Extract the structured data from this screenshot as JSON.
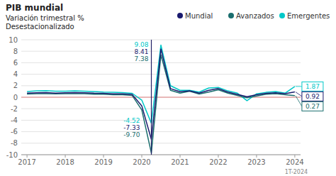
{
  "chart_data": {
    "type": "line",
    "title": "PIB mundial",
    "subtitle": [
      "Variación trimestral %",
      "Desestacionalizado"
    ],
    "x": [
      2017.0,
      2017.25,
      2017.5,
      2017.75,
      2018.0,
      2018.25,
      2018.5,
      2018.75,
      2019.0,
      2019.25,
      2019.5,
      2019.75,
      2020.0,
      2020.25,
      2020.5,
      2020.75,
      2021.0,
      2021.25,
      2021.5,
      2021.75,
      2022.0,
      2022.25,
      2022.5,
      2022.75,
      2023.0,
      2023.25,
      2023.5,
      2023.75,
      2024.0
    ],
    "series": [
      {
        "name": "Mundial",
        "color": "#1a1a6e",
        "values": [
          0.7,
          0.78,
          0.8,
          0.72,
          0.78,
          0.8,
          0.78,
          0.7,
          0.68,
          0.6,
          0.6,
          0.48,
          -1.5,
          -7.33,
          8.41,
          1.5,
          0.95,
          1.1,
          0.7,
          1.2,
          1.5,
          0.9,
          0.5,
          0.1,
          0.42,
          0.68,
          0.78,
          0.62,
          0.92
        ]
      },
      {
        "name": "Avanzados",
        "color": "#1a6e6e",
        "values": [
          0.55,
          0.62,
          0.63,
          0.58,
          0.62,
          0.63,
          0.62,
          0.54,
          0.52,
          0.42,
          0.42,
          0.3,
          -2.2,
          -9.7,
          7.38,
          1.2,
          0.7,
          1.05,
          0.55,
          0.9,
          1.3,
          0.72,
          0.3,
          -0.1,
          0.22,
          0.52,
          0.62,
          0.42,
          0.27
        ]
      },
      {
        "name": "Emergentes",
        "color": "#00c8c8",
        "values": [
          1.0,
          1.1,
          1.15,
          1.05,
          1.05,
          1.1,
          1.05,
          1.0,
          0.9,
          0.85,
          0.8,
          0.68,
          -0.5,
          -4.52,
          9.08,
          2.0,
          1.2,
          1.2,
          0.9,
          1.6,
          1.7,
          1.1,
          0.7,
          -0.6,
          0.6,
          0.85,
          1.0,
          0.72,
          1.87
        ]
      }
    ],
    "xlim": [
      2016.85,
      2024.15
    ],
    "xticks": [
      2017,
      2018,
      2019,
      2020,
      2021,
      2022,
      2023,
      2024
    ],
    "ylim": [
      -10,
      10
    ],
    "yticks": [
      -10,
      -8,
      -6,
      -4,
      -2,
      0,
      2,
      4,
      6,
      8,
      10
    ],
    "grid": true,
    "legend": "top-right",
    "reference_lines": [
      {
        "axis": "y",
        "value": 0,
        "color": "#e08080"
      },
      {
        "axis": "x",
        "value": 2020.25,
        "color": "#222266"
      }
    ],
    "annotations": [
      {
        "text": "9.08",
        "color": "#00c8c8"
      },
      {
        "text": "8.41",
        "color": "#1a1a6e"
      },
      {
        "text": "7.38",
        "color": "#1a6e6e"
      },
      {
        "text": "-4.52",
        "color": "#00c8c8"
      },
      {
        "text": "-7.33",
        "color": "#1a1a6e"
      },
      {
        "text": "-9.70",
        "color": "#1a6e6e"
      },
      {
        "text": "1.87",
        "value": 1.87,
        "color": "#00c8c8"
      },
      {
        "text": "0.92",
        "value": 0.92,
        "color": "#1a1a6e"
      },
      {
        "text": "0.27",
        "value": 0.27,
        "color": "#1a6e6e"
      },
      {
        "text": "1T-2024",
        "color": "#888888"
      }
    ]
  }
}
